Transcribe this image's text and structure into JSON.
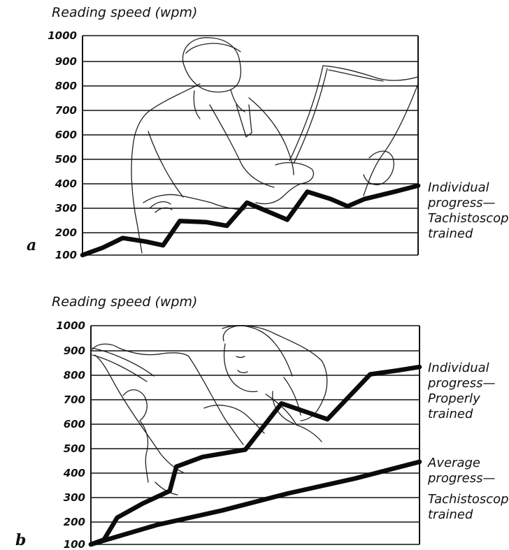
{
  "chart_data": [
    {
      "type": "line",
      "panel_label": "a",
      "ylabel": "Reading speed (wpm)",
      "yticks": [
        100,
        200,
        300,
        400,
        500,
        600,
        700,
        800,
        900,
        1000
      ],
      "ylim": [
        100,
        1000
      ],
      "xlim": [
        0,
        1
      ],
      "grid": true,
      "series": [
        {
          "label": [
            "Individual",
            "progress—",
            "Tachistoscop",
            "trained"
          ],
          "x": [
            0,
            0.06,
            0.12,
            0.19,
            0.24,
            0.29,
            0.37,
            0.43,
            0.49,
            0.55,
            0.61,
            0.67,
            0.74,
            0.79,
            0.84,
            0.93,
            1.0
          ],
          "y": [
            100,
            130,
            170,
            155,
            140,
            240,
            235,
            220,
            315,
            280,
            245,
            360,
            330,
            300,
            330,
            360,
            385
          ]
        }
      ]
    },
    {
      "type": "line",
      "panel_label": "b",
      "ylabel": "Reading speed (wpm)",
      "yticks": [
        100,
        200,
        300,
        400,
        500,
        600,
        700,
        800,
        900,
        1000
      ],
      "ylim": [
        100,
        1000
      ],
      "xlim": [
        0,
        1
      ],
      "grid": true,
      "series": [
        {
          "label": [
            "Individual",
            "progress—",
            "Properly",
            "trained"
          ],
          "x": [
            0,
            0.04,
            0.08,
            0.16,
            0.24,
            0.26,
            0.34,
            0.47,
            0.58,
            0.72,
            0.85,
            0.93,
            1.0
          ],
          "y": [
            100,
            120,
            210,
            270,
            320,
            420,
            460,
            490,
            680,
            615,
            800,
            815,
            830
          ]
        },
        {
          "label": [
            "Average",
            "progress—",
            "Tachistoscop",
            "trained"
          ],
          "x": [
            0,
            0.05,
            0.2,
            0.4,
            0.6,
            0.8,
            1.0
          ],
          "y": [
            100,
            120,
            180,
            240,
            310,
            370,
            440
          ]
        }
      ]
    }
  ]
}
